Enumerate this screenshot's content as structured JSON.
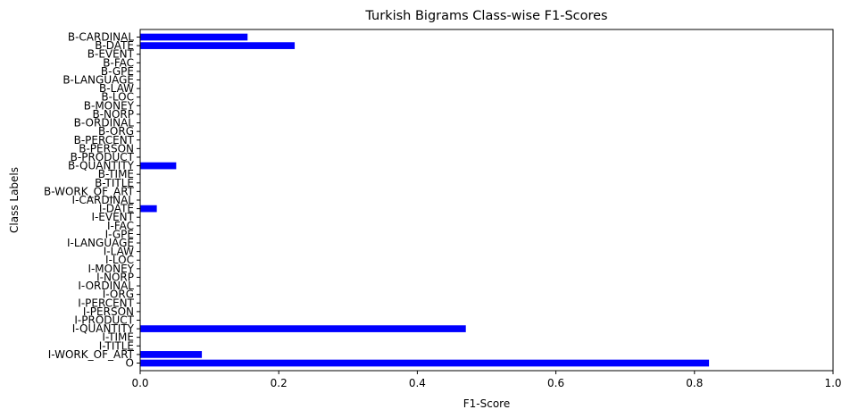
{
  "chart_data": {
    "type": "bar",
    "orientation": "horizontal",
    "title": "Turkish Bigrams Class-wise F1-Scores",
    "xlabel": "F1-Score",
    "ylabel": "Class Labels",
    "xlim": [
      0,
      1.0
    ],
    "xticks": [
      "0.0",
      "0.2",
      "0.4",
      "0.6",
      "0.8",
      "1.0"
    ],
    "grid": false,
    "bar_color": "#0000ff",
    "categories": [
      "B-CARDINAL",
      "B-DATE",
      "B-EVENT",
      "B-FAC",
      "B-GPE",
      "B-LANGUAGE",
      "B-LAW",
      "B-LOC",
      "B-MONEY",
      "B-NORP",
      "B-ORDINAL",
      "B-ORG",
      "B-PERCENT",
      "B-PERSON",
      "B-PRODUCT",
      "B-QUANTITY",
      "B-TIME",
      "B-TITLE",
      "B-WORK_OF_ART",
      "I-CARDINAL",
      "I-DATE",
      "I-EVENT",
      "I-FAC",
      "I-GPE",
      "I-LANGUAGE",
      "I-LAW",
      "I-LOC",
      "I-MONEY",
      "I-NORP",
      "I-ORDINAL",
      "I-ORG",
      "I-PERCENT",
      "I-PERSON",
      "I-PRODUCT",
      "I-QUANTITY",
      "I-TIME",
      "I-TITLE",
      "I-WORK_OF_ART",
      "O"
    ],
    "values": [
      0.155,
      0.223,
      0,
      0,
      0,
      0,
      0,
      0,
      0,
      0,
      0,
      0,
      0,
      0,
      0,
      0.052,
      0,
      0,
      0,
      0,
      0.024,
      0,
      0,
      0,
      0,
      0,
      0,
      0,
      0,
      0,
      0,
      0,
      0,
      0,
      0.47,
      0,
      0,
      0.089,
      0.821
    ]
  }
}
